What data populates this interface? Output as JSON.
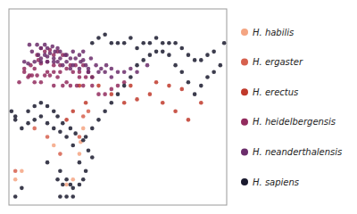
{
  "chart_data": {
    "type": "scatter",
    "xlim": [
      -20,
      150
    ],
    "ylim": [
      -40,
      75
    ],
    "tick_labels": false,
    "grid": false,
    "legend": "right",
    "series": [
      {
        "name": "H. habilis",
        "color": "#f4a582",
        "x": [
          -15,
          -10,
          25,
          30,
          35,
          36,
          38,
          15
        ],
        "values": [
          -25,
          -20,
          -28,
          -25,
          -10,
          -3,
          5,
          -5
        ]
      },
      {
        "name": "H. ergaster",
        "color": "#d6604d",
        "x": [
          -15,
          0,
          10,
          20,
          35,
          38,
          42
        ],
        "values": [
          -20,
          5,
          0,
          -10,
          0,
          12,
          15
        ]
      },
      {
        "name": "H. erectus",
        "color": "#c0392b",
        "x": [
          35,
          50,
          60,
          70,
          80,
          90,
          100,
          110,
          120,
          130,
          105,
          115,
          95,
          75,
          45,
          25,
          30,
          40
        ],
        "values": [
          30,
          30,
          25,
          20,
          22,
          25,
          20,
          15,
          10,
          20,
          30,
          28,
          32,
          30,
          35,
          10,
          15,
          20
        ]
      },
      {
        "name": "H. heidelbergensis",
        "color": "#922b5e",
        "x": [
          -5,
          0,
          5,
          10,
          15,
          20,
          25,
          30,
          35,
          2,
          8,
          12,
          15,
          18,
          22,
          -3,
          3,
          -8,
          28,
          5,
          10,
          15,
          20,
          -2,
          35,
          40,
          45,
          42,
          38,
          32,
          25,
          18,
          12,
          8,
          2,
          -4,
          -8,
          -12,
          0,
          5,
          15,
          22,
          28,
          33,
          38,
          50,
          55,
          60,
          65,
          70
        ],
        "values": [
          35,
          40,
          43,
          44,
          42,
          42,
          40,
          38,
          35,
          48,
          50,
          51,
          48,
          50,
          48,
          42,
          45,
          38,
          42,
          52,
          38,
          38,
          38,
          36,
          38,
          35,
          30,
          38,
          42,
          42,
          32,
          35,
          36,
          36,
          36,
          36,
          40,
          32,
          32,
          32,
          30,
          30,
          30,
          30,
          30,
          25,
          25,
          28,
          30,
          32
        ]
      },
      {
        "name": "H. neanderthalensis",
        "color": "#6b2d6b",
        "x": [
          -5,
          0,
          5,
          10,
          15,
          20,
          25,
          30,
          35,
          -2,
          5,
          10,
          14,
          18,
          -8,
          3,
          8,
          12,
          16,
          20,
          24,
          28,
          -4,
          2,
          8,
          30,
          35,
          38,
          40,
          42,
          5,
          10,
          15,
          22,
          28,
          18,
          25,
          32,
          36,
          38,
          44,
          48,
          52,
          56,
          60,
          42,
          45,
          50,
          55,
          60,
          65,
          70,
          75,
          80,
          88
        ],
        "values": [
          43,
          44,
          46,
          47,
          46,
          46,
          44,
          42,
          40,
          50,
          52,
          52,
          53,
          52,
          44,
          48,
          48,
          49,
          50,
          50,
          48,
          46,
          54,
          54,
          54,
          50,
          48,
          45,
          42,
          40,
          44,
          44,
          44,
          42,
          40,
          44,
          48,
          46,
          44,
          50,
          46,
          42,
          40,
          42,
          40,
          38,
          35,
          38,
          38,
          35,
          38,
          38,
          40,
          38,
          42
        ]
      },
      {
        "name": "H. sapiens",
        "color": "#1a1a2e",
        "x": [
          -15,
          -10,
          -5,
          0,
          5,
          10,
          15,
          20,
          25,
          30,
          35,
          25,
          30,
          20,
          10,
          -10,
          -15,
          20,
          25,
          30,
          40,
          45,
          50,
          55,
          60,
          65,
          70,
          75,
          80,
          85,
          90,
          95,
          100,
          105,
          110,
          115,
          120,
          125,
          130,
          135,
          140,
          145,
          45,
          50,
          55,
          60,
          65,
          70,
          75,
          80,
          85,
          90,
          95,
          100,
          105,
          110,
          115,
          120,
          125,
          130,
          135,
          140,
          148,
          -18,
          -15,
          -5,
          0,
          5,
          10,
          15,
          18,
          22,
          28,
          32,
          38,
          42,
          45,
          40,
          38,
          35,
          28,
          22,
          18
        ],
        "values": [
          10,
          5,
          8,
          10,
          12,
          8,
          5,
          3,
          0,
          -5,
          -15,
          -25,
          -30,
          -20,
          -15,
          -30,
          -35,
          -35,
          -35,
          -35,
          0,
          5,
          10,
          15,
          20,
          25,
          30,
          35,
          42,
          45,
          48,
          50,
          50,
          48,
          42,
          38,
          32,
          25,
          30,
          35,
          38,
          42,
          55,
          58,
          60,
          55,
          55,
          55,
          58,
          52,
          55,
          55,
          58,
          55,
          55,
          55,
          52,
          48,
          45,
          45,
          48,
          50,
          55,
          15,
          12,
          15,
          18,
          20,
          18,
          15,
          12,
          8,
          5,
          2,
          -2,
          -8,
          -12,
          -20,
          -25,
          -28,
          -28,
          -28,
          -25
        ]
      }
    ]
  }
}
